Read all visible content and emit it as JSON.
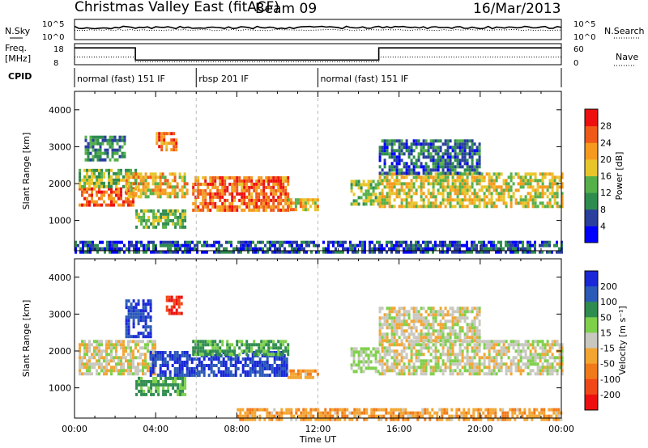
{
  "header": {
    "station": "Christmas Valley East (fitACF)",
    "beam": "Beam 09",
    "date": "16/Mar/2013"
  },
  "side_labels": {
    "nsky": "N.Sky",
    "nsearch": "N.Search",
    "freq_line1": "Freq.",
    "freq_line2": "[MHz]",
    "nave": "Nave",
    "cpid": "CPID"
  },
  "chart_data": [
    {
      "type": "line",
      "name": "noise-panel",
      "y_left_ticks": [
        "10^5",
        "10^0"
      ],
      "y_right_ticks": [
        "10^5",
        "10^0"
      ],
      "series": [
        {
          "name": "N.Sky",
          "style": "solid"
        },
        {
          "name": "N.Search",
          "style": "dotted"
        }
      ]
    },
    {
      "type": "line",
      "name": "freq-nave-panel",
      "y_left_ticks": [
        "18",
        "8"
      ],
      "y_right_ticks": [
        "60",
        "0"
      ],
      "freq_steps": [
        {
          "t_start": 0.0,
          "t_end": 3.0,
          "freq": 16.4
        },
        {
          "t_start": 3.0,
          "t_end": 15.0,
          "freq": 10.6
        },
        {
          "t_start": 15.0,
          "t_end": 24.0,
          "freq": 16.4
        }
      ],
      "nave_steps": [
        {
          "t_start": 0.0,
          "t_end": 3.0,
          "nave": 22
        },
        {
          "t_start": 3.0,
          "t_end": 15.0,
          "nave": 8
        },
        {
          "t_start": 15.0,
          "t_end": 24.0,
          "nave": 22
        }
      ]
    },
    {
      "type": "table",
      "name": "cpid-bar",
      "segments": [
        {
          "t_start": 0.0,
          "t_end": 6.0,
          "label": "normal (fast) 151 IF"
        },
        {
          "t_start": 6.0,
          "t_end": 12.0,
          "label": "rbsp 201 IF"
        },
        {
          "t_start": 12.0,
          "t_end": 24.0,
          "label": "normal (fast) 151 IF"
        }
      ]
    },
    {
      "type": "heatmap",
      "name": "power",
      "ylabel": "Slant Range [km]",
      "ylim": [
        180,
        4500
      ],
      "yticks": [
        1000,
        2000,
        3000,
        4000
      ],
      "colorbar_label": "Power [dB]",
      "colorbar_ticks": [
        4,
        8,
        12,
        16,
        20,
        24,
        28
      ],
      "colorbar_range": [
        0,
        32
      ],
      "colorbar_colors": [
        "#0000ff",
        "#2a3f9e",
        "#2f8c4f",
        "#55b04a",
        "#e8c52a",
        "#f59a1e",
        "#f05a18",
        "#ee1010"
      ],
      "regions": [
        {
          "t0": 0.2,
          "t1": 3.0,
          "r0": 1400,
          "r1": 1900,
          "power": 26
        },
        {
          "t0": 0.2,
          "t1": 3.0,
          "r0": 1900,
          "r1": 2400,
          "power": 14
        },
        {
          "t0": 0.5,
          "t1": 2.5,
          "r0": 2600,
          "r1": 3300,
          "power": 10
        },
        {
          "t0": 2.5,
          "t1": 5.5,
          "r0": 1600,
          "r1": 2300,
          "power": 20
        },
        {
          "t0": 3.0,
          "t1": 5.5,
          "r0": 800,
          "r1": 1300,
          "power": 14
        },
        {
          "t0": 4.0,
          "t1": 5.0,
          "r0": 2900,
          "r1": 3400,
          "power": 24
        },
        {
          "t0": 5.8,
          "t1": 10.5,
          "r0": 1300,
          "r1": 2200,
          "power": 25
        },
        {
          "t0": 10.5,
          "t1": 12.0,
          "r0": 1300,
          "r1": 1600,
          "power": 20
        },
        {
          "t0": 13.6,
          "t1": 15.0,
          "r0": 1400,
          "r1": 2100,
          "power": 14
        },
        {
          "t0": 15.0,
          "t1": 24.0,
          "r0": 1400,
          "r1": 2300,
          "power": 18
        },
        {
          "t0": 15.0,
          "t1": 20.0,
          "r0": 2300,
          "r1": 3200,
          "power": 8
        },
        {
          "t0": 0.0,
          "t1": 24.0,
          "r0": 180,
          "r1": 450,
          "power": 6
        }
      ]
    },
    {
      "type": "heatmap",
      "name": "velocity",
      "ylabel": "Slant Range [km]",
      "xlabel": "Time UT",
      "ylim": [
        180,
        4500
      ],
      "yticks": [
        1000,
        2000,
        3000,
        4000
      ],
      "x_ticks": [
        "00:00",
        "04:00",
        "08:00",
        "12:00",
        "16:00",
        "20:00",
        "00:00"
      ],
      "colorbar_label": "Velocity [m s⁻¹]",
      "colorbar_ticks": [
        200,
        100,
        50,
        15,
        -15,
        -50,
        -100,
        -200
      ],
      "colorbar_colors": [
        "#1a28d8",
        "#2c5ab8",
        "#2f8c4f",
        "#7ed04a",
        "#c8c8c0",
        "#f3a532",
        "#f07a1a",
        "#f04818",
        "#ee1010"
      ],
      "regions": [
        {
          "t0": 0.2,
          "t1": 4.0,
          "r0": 1400,
          "r1": 2300,
          "velocity": 0
        },
        {
          "t0": 2.5,
          "t1": 3.7,
          "r0": 2400,
          "r1": 3400,
          "velocity": 200
        },
        {
          "t0": 4.5,
          "t1": 5.3,
          "r0": 3000,
          "r1": 3500,
          "velocity": -200
        },
        {
          "t0": 3.7,
          "t1": 10.5,
          "r0": 1300,
          "r1": 2000,
          "velocity": 200
        },
        {
          "t0": 5.8,
          "t1": 10.5,
          "r0": 1900,
          "r1": 2300,
          "velocity": 60
        },
        {
          "t0": 3.0,
          "t1": 5.5,
          "r0": 800,
          "r1": 1300,
          "velocity": 60
        },
        {
          "t0": 10.5,
          "t1": 12.0,
          "r0": 1300,
          "r1": 1500,
          "velocity": -40
        },
        {
          "t0": 13.6,
          "t1": 15.0,
          "r0": 1400,
          "r1": 2100,
          "velocity": 20
        },
        {
          "t0": 15.0,
          "t1": 24.0,
          "r0": 1400,
          "r1": 2300,
          "velocity": 0
        },
        {
          "t0": 15.0,
          "t1": 20.0,
          "r0": 2300,
          "r1": 3200,
          "velocity": 0
        },
        {
          "t0": 8.0,
          "t1": 24.0,
          "r0": 180,
          "r1": 450,
          "velocity": -40
        }
      ]
    }
  ]
}
